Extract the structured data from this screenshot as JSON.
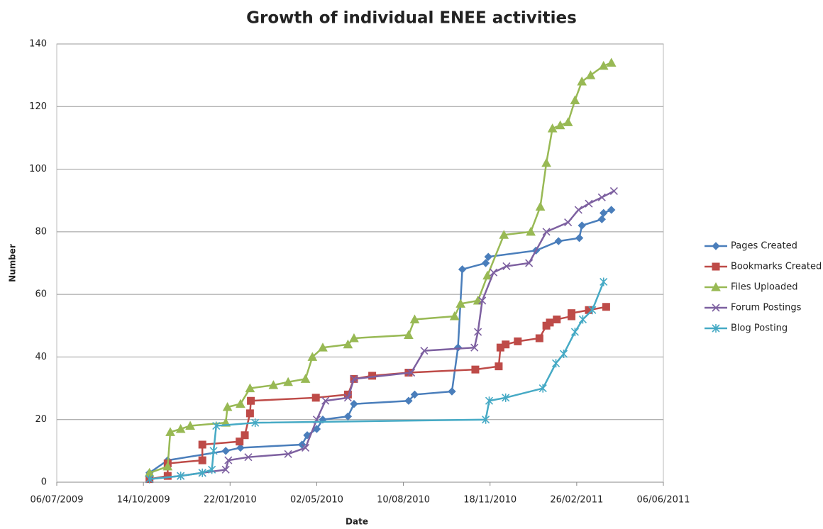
{
  "chart_data": {
    "type": "line",
    "title": "Growth of individual ENEE activities",
    "x_label": "Date",
    "y_label": "Number",
    "xlim": [
      "06/07/2009",
      "06/06/2011"
    ],
    "xticks": [
      "06/07/2009",
      "14/10/2009",
      "22/01/2010",
      "02/05/2010",
      "10/08/2010",
      "18/11/2010",
      "26/02/2011",
      "06/06/2011"
    ],
    "ylim": [
      0,
      140
    ],
    "yticks": [
      0,
      20,
      40,
      60,
      80,
      100,
      120,
      140
    ],
    "grid": true,
    "legend": "right",
    "series": [
      {
        "name": "Pages Created",
        "color": "#4a7ebb",
        "marker": "diamond",
        "x": [
          "21/10/2009",
          "11/11/2009",
          "17/01/2010",
          "03/02/2010",
          "15/04/2010",
          "21/04/2010",
          "02/05/2010",
          "09/05/2010",
          "07/06/2010",
          "14/06/2010",
          "16/08/2010",
          "23/08/2010",
          "05/10/2010",
          "12/10/2010",
          "17/10/2010",
          "13/11/2010",
          "16/11/2010",
          "10/01/2011",
          "05/02/2011",
          "01/03/2011",
          "04/03/2011",
          "27/03/2011",
          "29/03/2011",
          "07/04/2011"
        ],
        "values": [
          3,
          7,
          10,
          11,
          12,
          15,
          17,
          20,
          21,
          25,
          26,
          28,
          29,
          43,
          68,
          70,
          72,
          74,
          77,
          78,
          82,
          84,
          86,
          87
        ]
      },
      {
        "name": "Bookmarks Created",
        "color": "#be4b48",
        "marker": "square",
        "x": [
          "21/10/2009",
          "11/11/2009",
          "11/11/2009",
          "21/12/2009",
          "21/12/2009",
          "02/02/2010",
          "08/02/2010",
          "14/02/2010",
          "15/02/2010",
          "01/05/2010",
          "07/06/2010",
          "14/06/2010",
          "05/07/2010",
          "16/08/2010",
          "01/11/2010",
          "28/11/2010",
          "30/11/2010",
          "06/12/2010",
          "20/12/2010",
          "14/01/2011",
          "22/01/2011",
          "26/01/2011",
          "03/02/2011",
          "20/02/2011",
          "20/02/2011",
          "12/03/2011",
          "01/04/2011"
        ],
        "values": [
          1,
          2,
          6,
          7,
          12,
          13,
          15,
          22,
          26,
          27,
          28,
          33,
          34,
          35,
          36,
          37,
          43,
          44,
          45,
          46,
          50,
          51,
          52,
          53,
          54,
          55,
          56
        ]
      },
      {
        "name": "Files Uploaded",
        "color": "#98b954",
        "marker": "triangle",
        "x": [
          "21/10/2009",
          "11/11/2009",
          "14/11/2009",
          "26/11/2009",
          "07/12/2009",
          "17/01/2010",
          "19/01/2010",
          "03/02/2010",
          "14/02/2010",
          "13/03/2010",
          "30/03/2010",
          "19/04/2010",
          "27/04/2010",
          "09/05/2010",
          "07/06/2010",
          "14/06/2010",
          "16/08/2010",
          "23/08/2010",
          "08/10/2010",
          "15/10/2010",
          "04/11/2010",
          "15/11/2010",
          "04/12/2010",
          "04/01/2011",
          "15/01/2011",
          "22/01/2011",
          "29/01/2011",
          "07/02/2011",
          "16/02/2011",
          "24/02/2011",
          "04/03/2011",
          "14/03/2011",
          "29/03/2011",
          "07/04/2011"
        ],
        "values": [
          3,
          5,
          16,
          17,
          18,
          19,
          24,
          25,
          30,
          31,
          32,
          33,
          40,
          43,
          44,
          46,
          47,
          52,
          53,
          57,
          58,
          66,
          79,
          80,
          88,
          102,
          113,
          114,
          115,
          122,
          128,
          130,
          133,
          134
        ]
      },
      {
        "name": "Forum Postings",
        "color": "#7d60a0",
        "marker": "x",
        "x": [
          "21/10/2009",
          "26/11/2009",
          "21/12/2009",
          "17/01/2010",
          "20/01/2010",
          "12/02/2010",
          "30/03/2010",
          "19/04/2010",
          "02/05/2010",
          "12/05/2010",
          "07/06/2010",
          "14/06/2010",
          "19/08/2010",
          "03/09/2010",
          "31/10/2010",
          "04/11/2010",
          "09/11/2010",
          "22/11/2010",
          "07/12/2010",
          "02/01/2011",
          "22/01/2011",
          "16/02/2011",
          "28/02/2011",
          "12/03/2011",
          "27/03/2011",
          "10/04/2011"
        ],
        "values": [
          1,
          2,
          3,
          4,
          7,
          8,
          9,
          11,
          20,
          26,
          27,
          33,
          35,
          42,
          43,
          48,
          58,
          67,
          69,
          70,
          80,
          83,
          87,
          89,
          91,
          93
        ]
      },
      {
        "name": "Blog Posting",
        "color": "#46aac5",
        "marker": "star",
        "x": [
          "21/10/2009",
          "26/11/2009",
          "21/12/2009",
          "01/01/2010",
          "03/01/2010",
          "06/01/2010",
          "20/02/2010",
          "13/11/2010",
          "17/11/2010",
          "06/12/2010",
          "18/01/2011",
          "02/02/2011",
          "11/02/2011",
          "24/02/2011",
          "05/03/2011",
          "16/03/2011",
          "29/03/2011"
        ],
        "values": [
          1,
          2,
          3,
          4,
          10,
          18,
          19,
          20,
          26,
          27,
          30,
          38,
          41,
          48,
          52,
          55,
          64
        ]
      }
    ]
  }
}
